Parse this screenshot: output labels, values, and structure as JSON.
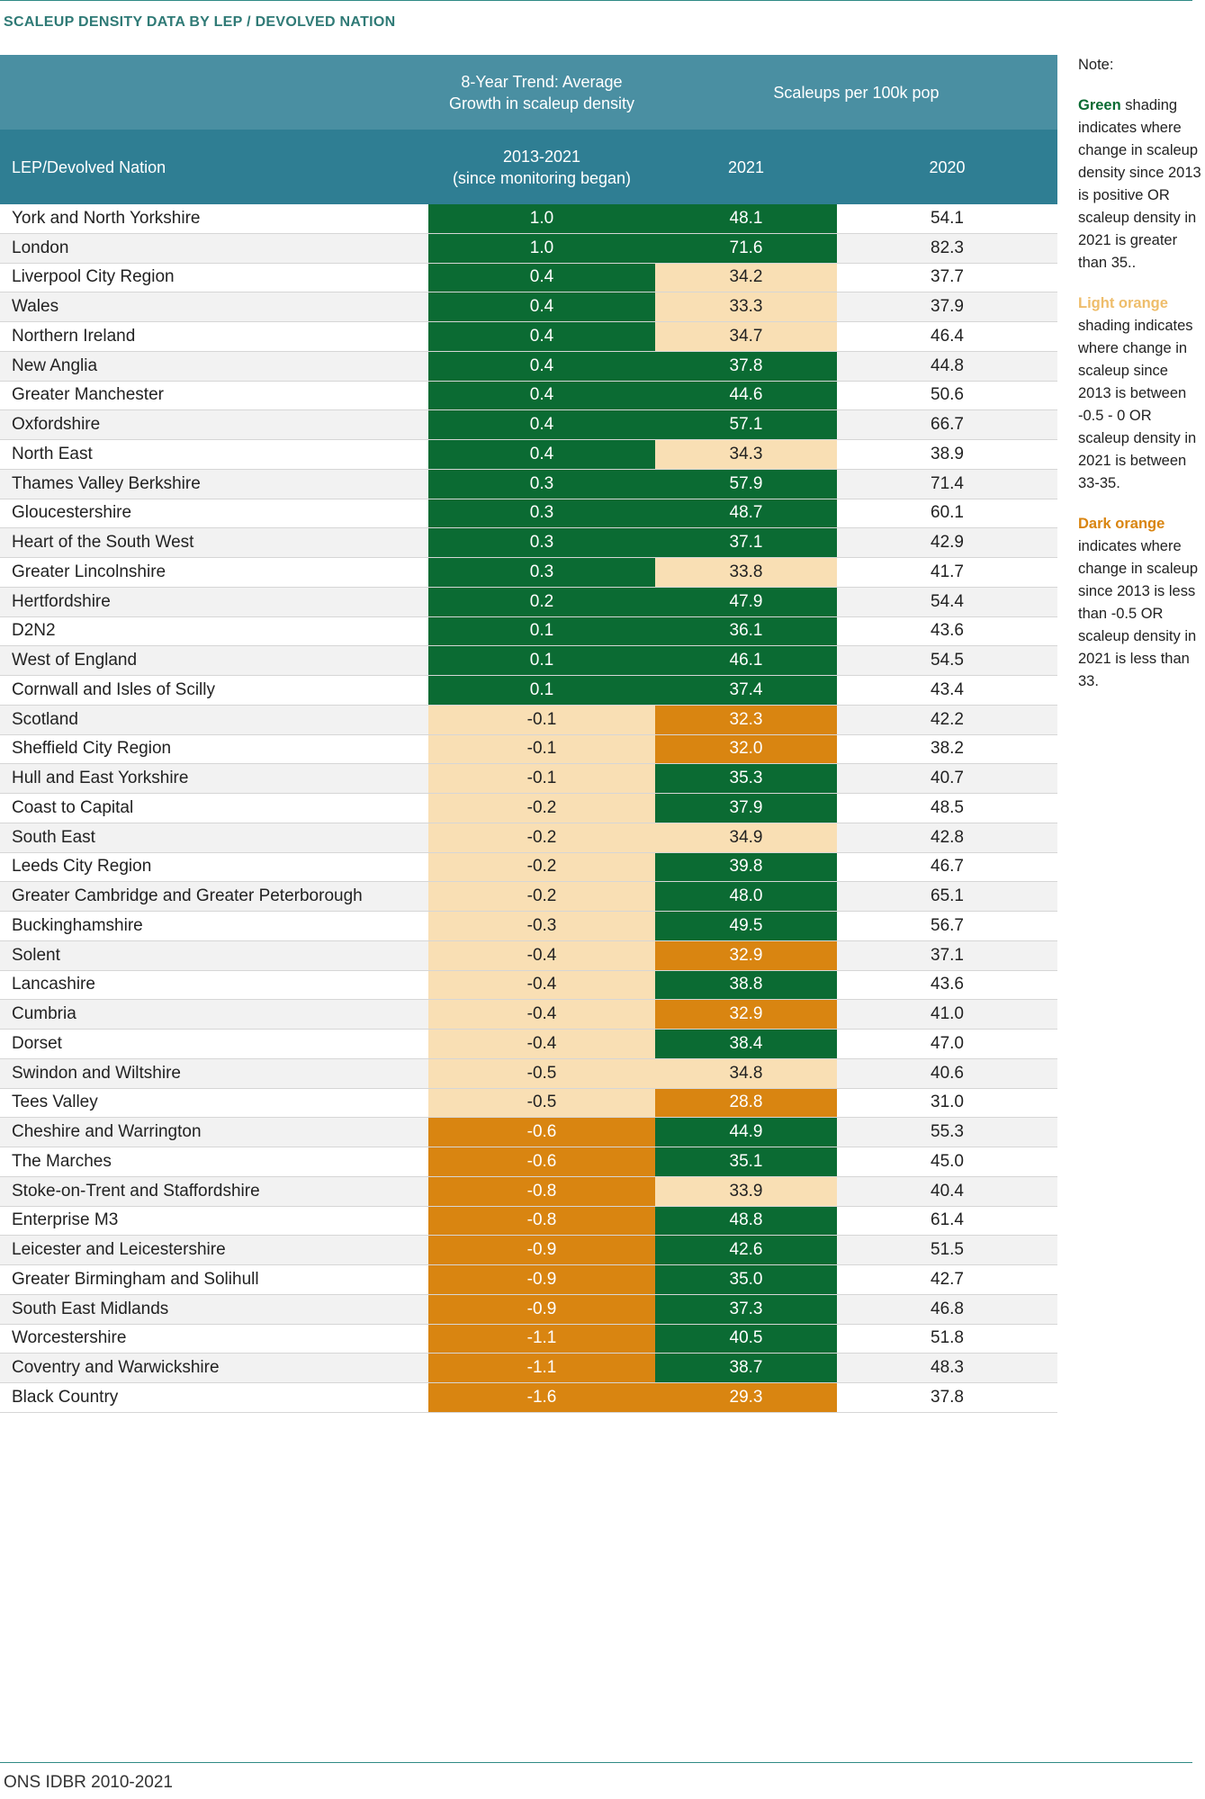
{
  "title": "SCALEUP DENSITY DATA BY LEP / DEVOLVED NATION",
  "header": {
    "trend_group": "8-Year Trend: Average\nGrowth in scaleup density",
    "scaleups_group": "Scaleups per 100k pop",
    "col_name": "LEP/Devolved Nation",
    "col_trend": "2013-2021\n(since monitoring began)",
    "col_2021": "2021",
    "col_2020": "2020"
  },
  "colors": {
    "green": "#0b6b33",
    "light_orange": "#f9dfb4",
    "dark_orange": "#d98511",
    "header": "#2f7e93"
  },
  "rows": [
    {
      "name": "York and North Yorkshire",
      "trend": "1.0",
      "trend_shade": "green",
      "v2021": "48.1",
      "v2021_shade": "green",
      "v2020": "54.1"
    },
    {
      "name": "London",
      "trend": "1.0",
      "trend_shade": "green",
      "v2021": "71.6",
      "v2021_shade": "green",
      "v2020": "82.3"
    },
    {
      "name": "Liverpool City Region",
      "trend": "0.4",
      "trend_shade": "green",
      "v2021": "34.2",
      "v2021_shade": "light",
      "v2020": "37.7"
    },
    {
      "name": "Wales",
      "trend": "0.4",
      "trend_shade": "green",
      "v2021": "33.3",
      "v2021_shade": "light",
      "v2020": "37.9"
    },
    {
      "name": "Northern Ireland",
      "trend": "0.4",
      "trend_shade": "green",
      "v2021": "34.7",
      "v2021_shade": "light",
      "v2020": "46.4"
    },
    {
      "name": "New Anglia",
      "trend": "0.4",
      "trend_shade": "green",
      "v2021": "37.8",
      "v2021_shade": "green",
      "v2020": "44.8"
    },
    {
      "name": "Greater Manchester",
      "trend": "0.4",
      "trend_shade": "green",
      "v2021": "44.6",
      "v2021_shade": "green",
      "v2020": "50.6"
    },
    {
      "name": "Oxfordshire",
      "trend": "0.4",
      "trend_shade": "green",
      "v2021": "57.1",
      "v2021_shade": "green",
      "v2020": "66.7"
    },
    {
      "name": "North East",
      "trend": "0.4",
      "trend_shade": "green",
      "v2021": "34.3",
      "v2021_shade": "light",
      "v2020": "38.9"
    },
    {
      "name": "Thames Valley Berkshire",
      "trend": "0.3",
      "trend_shade": "green",
      "v2021": "57.9",
      "v2021_shade": "green",
      "v2020": "71.4"
    },
    {
      "name": "Gloucestershire",
      "trend": "0.3",
      "trend_shade": "green",
      "v2021": "48.7",
      "v2021_shade": "green",
      "v2020": "60.1"
    },
    {
      "name": "Heart of the South West",
      "trend": "0.3",
      "trend_shade": "green",
      "v2021": "37.1",
      "v2021_shade": "green",
      "v2020": "42.9"
    },
    {
      "name": "Greater Lincolnshire",
      "trend": "0.3",
      "trend_shade": "green",
      "v2021": "33.8",
      "v2021_shade": "light",
      "v2020": "41.7"
    },
    {
      "name": "Hertfordshire",
      "trend": "0.2",
      "trend_shade": "green",
      "v2021": "47.9",
      "v2021_shade": "green",
      "v2020": "54.4"
    },
    {
      "name": "D2N2",
      "trend": "0.1",
      "trend_shade": "green",
      "v2021": "36.1",
      "v2021_shade": "green",
      "v2020": "43.6"
    },
    {
      "name": "West of England",
      "trend": "0.1",
      "trend_shade": "green",
      "v2021": "46.1",
      "v2021_shade": "green",
      "v2020": "54.5"
    },
    {
      "name": "Cornwall and Isles of Scilly",
      "trend": "0.1",
      "trend_shade": "green",
      "v2021": "37.4",
      "v2021_shade": "green",
      "v2020": "43.4"
    },
    {
      "name": "Scotland",
      "trend": "-0.1",
      "trend_shade": "light",
      "v2021": "32.3",
      "v2021_shade": "dark",
      "v2020": "42.2"
    },
    {
      "name": "Sheffield City Region",
      "trend": "-0.1",
      "trend_shade": "light",
      "v2021": "32.0",
      "v2021_shade": "dark",
      "v2020": "38.2"
    },
    {
      "name": "Hull and East Yorkshire",
      "trend": "-0.1",
      "trend_shade": "light",
      "v2021": "35.3",
      "v2021_shade": "green",
      "v2020": "40.7"
    },
    {
      "name": "Coast to Capital",
      "trend": "-0.2",
      "trend_shade": "light",
      "v2021": "37.9",
      "v2021_shade": "green",
      "v2020": "48.5"
    },
    {
      "name": "South East",
      "trend": "-0.2",
      "trend_shade": "light",
      "v2021": "34.9",
      "v2021_shade": "light",
      "v2020": "42.8"
    },
    {
      "name": "Leeds City Region",
      "trend": "-0.2",
      "trend_shade": "light",
      "v2021": "39.8",
      "v2021_shade": "green",
      "v2020": "46.7"
    },
    {
      "name": "Greater Cambridge and Greater Peterborough",
      "trend": "-0.2",
      "trend_shade": "light",
      "v2021": "48.0",
      "v2021_shade": "green",
      "v2020": "65.1"
    },
    {
      "name": "Buckinghamshire",
      "trend": "-0.3",
      "trend_shade": "light",
      "v2021": "49.5",
      "v2021_shade": "green",
      "v2020": "56.7"
    },
    {
      "name": "Solent",
      "trend": "-0.4",
      "trend_shade": "light",
      "v2021": "32.9",
      "v2021_shade": "dark",
      "v2020": "37.1"
    },
    {
      "name": "Lancashire",
      "trend": "-0.4",
      "trend_shade": "light",
      "v2021": "38.8",
      "v2021_shade": "green",
      "v2020": "43.6"
    },
    {
      "name": "Cumbria",
      "trend": "-0.4",
      "trend_shade": "light",
      "v2021": "32.9",
      "v2021_shade": "dark",
      "v2020": "41.0"
    },
    {
      "name": "Dorset",
      "trend": "-0.4",
      "trend_shade": "light",
      "v2021": "38.4",
      "v2021_shade": "green",
      "v2020": "47.0"
    },
    {
      "name": "Swindon and Wiltshire",
      "trend": "-0.5",
      "trend_shade": "light",
      "v2021": "34.8",
      "v2021_shade": "light",
      "v2020": "40.6"
    },
    {
      "name": "Tees Valley",
      "trend": "-0.5",
      "trend_shade": "light",
      "v2021": "28.8",
      "v2021_shade": "dark",
      "v2020": "31.0"
    },
    {
      "name": "Cheshire and Warrington",
      "trend": "-0.6",
      "trend_shade": "dark",
      "v2021": "44.9",
      "v2021_shade": "green",
      "v2020": "55.3"
    },
    {
      "name": "The Marches",
      "trend": "-0.6",
      "trend_shade": "dark",
      "v2021": "35.1",
      "v2021_shade": "green",
      "v2020": "45.0"
    },
    {
      "name": "Stoke-on-Trent and Staffordshire",
      "trend": "-0.8",
      "trend_shade": "dark",
      "v2021": "33.9",
      "v2021_shade": "light",
      "v2020": "40.4"
    },
    {
      "name": "Enterprise M3",
      "trend": "-0.8",
      "trend_shade": "dark",
      "v2021": "48.8",
      "v2021_shade": "green",
      "v2020": "61.4"
    },
    {
      "name": "Leicester and Leicestershire",
      "trend": "-0.9",
      "trend_shade": "dark",
      "v2021": "42.6",
      "v2021_shade": "green",
      "v2020": "51.5"
    },
    {
      "name": "Greater Birmingham and Solihull",
      "trend": "-0.9",
      "trend_shade": "dark",
      "v2021": "35.0",
      "v2021_shade": "green",
      "v2020": "42.7"
    },
    {
      "name": "South East Midlands",
      "trend": "-0.9",
      "trend_shade": "dark",
      "v2021": "37.3",
      "v2021_shade": "green",
      "v2020": "46.8"
    },
    {
      "name": "Worcestershire",
      "trend": "-1.1",
      "trend_shade": "dark",
      "v2021": "40.5",
      "v2021_shade": "green",
      "v2020": "51.8"
    },
    {
      "name": "Coventry and Warwickshire",
      "trend": "-1.1",
      "trend_shade": "dark",
      "v2021": "38.7",
      "v2021_shade": "green",
      "v2020": "48.3"
    },
    {
      "name": "Black Country",
      "trend": "-1.6",
      "trend_shade": "dark",
      "v2021": "29.3",
      "v2021_shade": "dark",
      "v2020": "37.8"
    }
  ],
  "note": {
    "heading": "Note:",
    "green_kw": "Green",
    "green_text": " shading indicates where change in scaleup density since 2013 is positive OR scaleup density in 2021 is greater than 35..",
    "light_kw": "Light orange",
    "light_text": " shading indicates where change in scaleup since 2013 is between -0.5 - 0 OR scaleup density in 2021 is between 33-35.",
    "dark_kw": "Dark orange",
    "dark_text": " indicates where change in scaleup since 2013 is less than -0.5 OR scaleup density in 2021 is less than 33."
  },
  "source": "ONS IDBR 2010-2021"
}
